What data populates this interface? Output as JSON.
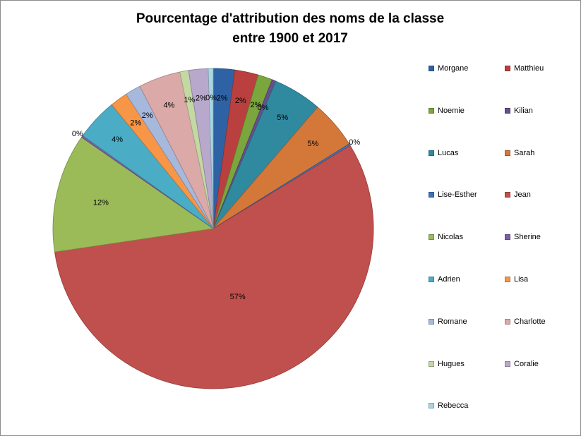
{
  "chart_data": {
    "type": "pie",
    "title": "Pourcentage d'attribution des noms de la classe",
    "subtitle": "entre 1900 et 2017",
    "slices": [
      {
        "name": "Morgane",
        "value": 2.2,
        "label": "2%",
        "color": "#2e62a5"
      },
      {
        "name": "Matthieu",
        "value": 2.4,
        "label": "2%",
        "color": "#b9403e"
      },
      {
        "name": "Noemie",
        "value": 1.5,
        "label": "2%",
        "color": "#7ba53d"
      },
      {
        "name": "Kilian",
        "value": 0.4,
        "label": "0%",
        "color": "#674f8c"
      },
      {
        "name": "Lucas",
        "value": 5.0,
        "label": "5%",
        "color": "#2f8aa0"
      },
      {
        "name": "Sarah",
        "value": 4.9,
        "label": "5%",
        "color": "#d4783a"
      },
      {
        "name": "Lise-Esther",
        "value": 0.2,
        "label": "0%",
        "color": "#3e72b8"
      },
      {
        "name": "Jean",
        "value": 57.3,
        "label": "57%",
        "color": "#c0504d"
      },
      {
        "name": "Nicolas",
        "value": 12.2,
        "label": "12%",
        "color": "#9bbb59"
      },
      {
        "name": "Sherine",
        "value": 0.2,
        "label": "0%",
        "color": "#7e5fa2"
      },
      {
        "name": "Adrien",
        "value": 4.3,
        "label": "4%",
        "color": "#4bacc6"
      },
      {
        "name": "Lisa",
        "value": 1.8,
        "label": "2%",
        "color": "#f79646"
      },
      {
        "name": "Romane",
        "value": 1.6,
        "label": "2%",
        "color": "#a6b8dc"
      },
      {
        "name": "Charlotte",
        "value": 4.3,
        "label": "4%",
        "color": "#dba9a8"
      },
      {
        "name": "Hugues",
        "value": 0.9,
        "label": "1%",
        "color": "#c4d8a4"
      },
      {
        "name": "Coralie",
        "value": 2.0,
        "label": "2%",
        "color": "#b8a9cc"
      },
      {
        "name": "Rebecca",
        "value": 0.5,
        "label": "0%",
        "color": "#a9d5e4"
      }
    ],
    "legend_position": "right"
  }
}
